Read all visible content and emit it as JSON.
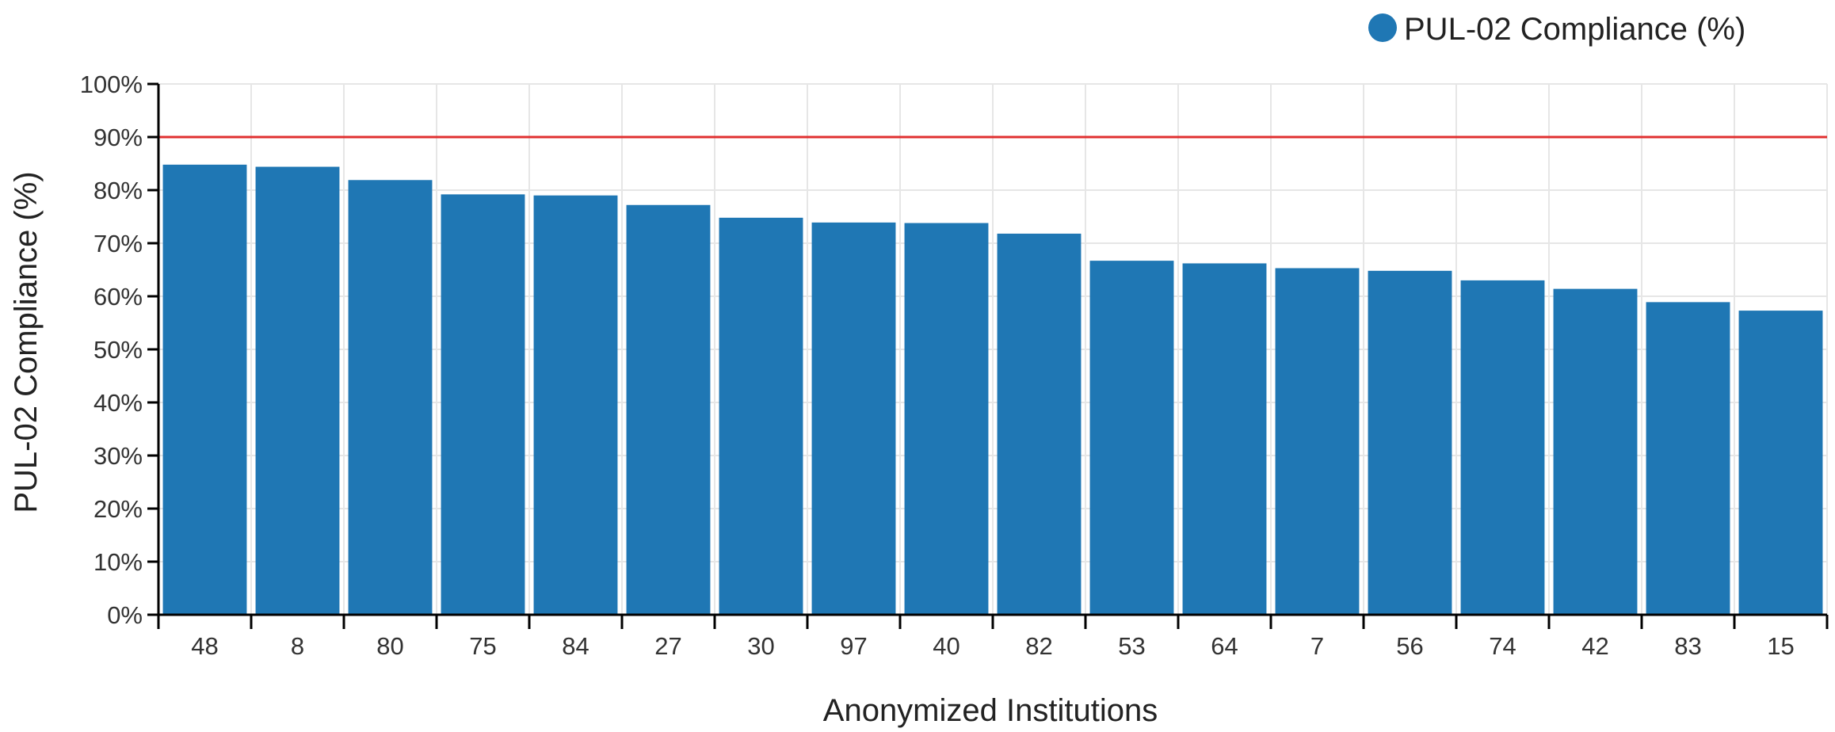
{
  "chart_data": {
    "type": "bar",
    "categories": [
      "48",
      "8",
      "80",
      "75",
      "84",
      "27",
      "30",
      "97",
      "40",
      "82",
      "53",
      "64",
      "7",
      "56",
      "74",
      "42",
      "83",
      "15"
    ],
    "series": [
      {
        "name": "PUL-02 Compliance (%)",
        "color": "#1f77b4",
        "values": [
          84.8,
          84.4,
          81.9,
          79.2,
          79.0,
          77.2,
          74.8,
          73.9,
          73.8,
          71.8,
          66.7,
          66.2,
          65.3,
          64.8,
          63.0,
          61.4,
          58.9,
          57.3
        ]
      }
    ],
    "title": "",
    "xlabel": "Anonymized Institutions",
    "ylabel": "PUL-02 Compliance (%)",
    "ylim": [
      0,
      100
    ],
    "yticks": [
      0,
      10,
      20,
      30,
      40,
      50,
      60,
      70,
      80,
      90,
      100
    ],
    "ytick_suffix": "%",
    "grid": true,
    "legend_position": "top-right",
    "reference_line": {
      "value": 90,
      "color": "#e03030"
    }
  }
}
